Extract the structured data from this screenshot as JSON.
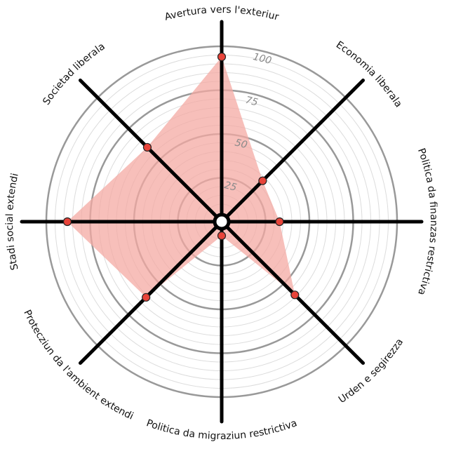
{
  "chart_data": {
    "type": "radar",
    "axes": [
      "Avertura vers l'exteriur",
      "Economia liberala",
      "Politica da finanzas restrictiva",
      "Urden e segirezza",
      "Politica da migraziun restrictiva",
      "Protecziun da l'ambient extendi",
      "Stadi social extendi",
      "Societad liberala"
    ],
    "series": [
      {
        "values": [
          94,
          33,
          33,
          59,
          8,
          61,
          88,
          60
        ]
      }
    ],
    "range": [
      0,
      100
    ],
    "ticks": [
      25,
      50,
      75,
      100
    ],
    "tick_labels": [
      "25",
      "50",
      "75",
      "100"
    ],
    "minor_ring_step": 5,
    "colors": {
      "fill": "#f4a9a3",
      "point": "#e8443a",
      "axis": "#000000",
      "major_ring": "#999999",
      "minor_ring": "#dcdcdc",
      "tick_label": "#8a8a8a"
    }
  }
}
